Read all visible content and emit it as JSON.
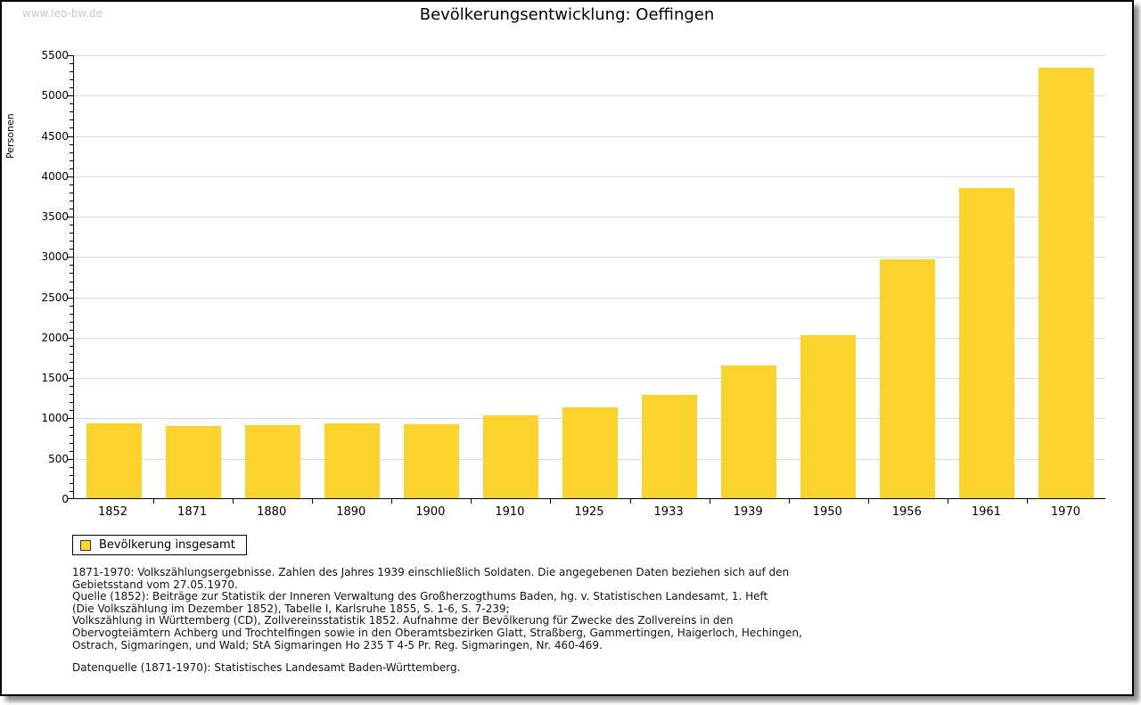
{
  "watermark": "www.leo-bw.de",
  "title": "Bevölkerungsentwicklung: Oeffingen",
  "chart_data": {
    "type": "bar",
    "title": "Bevölkerungsentwicklung: Oeffingen",
    "xlabel": "",
    "ylabel": "Personen",
    "ylim": [
      0,
      5500
    ],
    "ytick_step": 500,
    "ytick_minor_step": 100,
    "grid": true,
    "legend_position": "bottom-left",
    "bar_color": "#fcd32d",
    "categories": [
      "1852",
      "1871",
      "1880",
      "1890",
      "1900",
      "1910",
      "1925",
      "1933",
      "1939",
      "1950",
      "1956",
      "1961",
      "1970"
    ],
    "series": [
      {
        "name": "Bevölkerung insgesamt",
        "values": [
          925,
          890,
          910,
          925,
          915,
          1025,
          1125,
          1285,
          1645,
          2020,
          2960,
          3840,
          5330
        ]
      }
    ]
  },
  "legend": {
    "label": "Bevölkerung insgesamt",
    "swatch_color": "#fcd32d"
  },
  "footer": {
    "lines": [
      "1871-1970: Volkszählungsergebnisse. Zahlen des Jahres 1939 einschließlich Soldaten. Die angegebenen Daten beziehen sich auf den",
      "Gebietsstand vom 27.05.1970.",
      "Quelle (1852): Beiträge zur Statistik der Inneren Verwaltung des Großherzogthums Baden, hg. v. Statistischen Landesamt, 1. Heft",
      "(Die Volkszählung im Dezember 1852), Tabelle I, Karlsruhe 1855, S. 1-6, S. 7-239;",
      "Volkszählung in Württemberg (CD), Zollvereinsstatistik 1852. Aufnahme der Bevölkerung für Zwecke des Zollvereins in den",
      "Obervogteiämtern Achberg und Trochtelfingen sowie in den Oberamtsbezirken Glatt, Straßberg, Gammertingen, Haigerloch, Hechingen,",
      "Ostrach, Sigmaringen, und Wald; StA Sigmaringen Ho 235 T 4-5 Pr. Reg. Sigmaringen, Nr. 460-469."
    ],
    "datasource": "Datenquelle (1871-1970): Statistisches Landesamt Baden-Württemberg."
  }
}
